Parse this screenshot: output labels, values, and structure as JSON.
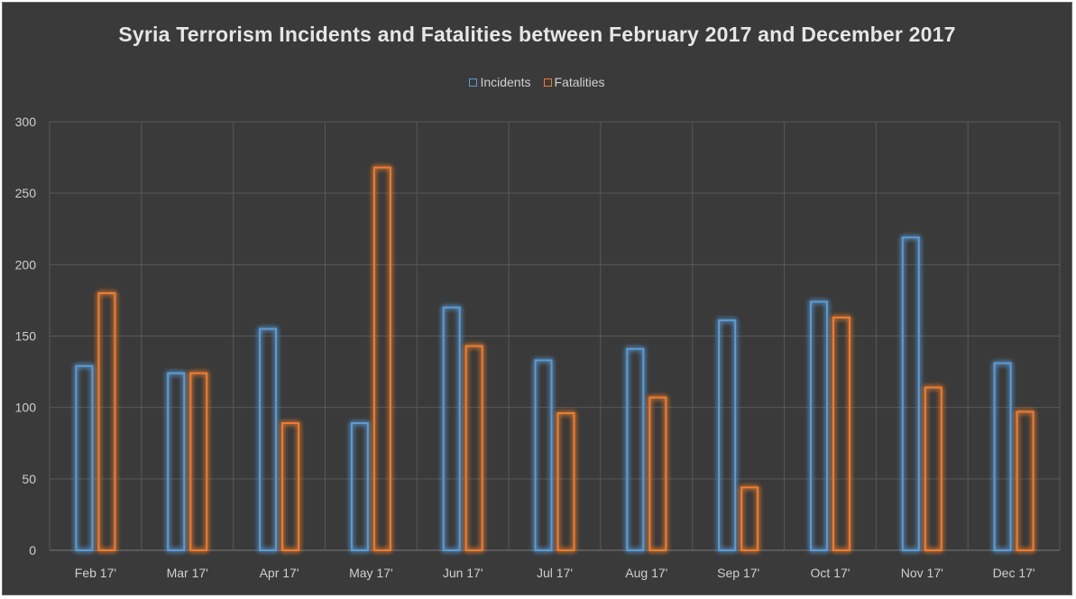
{
  "chart_data": {
    "type": "bar",
    "title": "Syria Terrorism Incidents and Fatalities between February 2017 and December 2017",
    "categories": [
      "Feb 17'",
      "Mar 17'",
      "Apr 17'",
      "May 17'",
      "Jun 17'",
      "Jul 17'",
      "Aug 17'",
      "Sep 17'",
      "Oct 17'",
      "Nov 17'",
      "Dec 17'"
    ],
    "series": [
      {
        "name": "Incidents",
        "color": "#5b9bd5",
        "values": [
          129,
          124,
          155,
          89,
          170,
          133,
          141,
          161,
          174,
          219,
          131
        ]
      },
      {
        "name": "Fatalities",
        "color": "#ed7d31",
        "values": [
          180,
          124,
          89,
          268,
          143,
          96,
          107,
          44,
          163,
          114,
          97
        ]
      }
    ],
    "ylim": [
      0,
      300
    ],
    "yticks": [
      0,
      50,
      100,
      150,
      200,
      250,
      300
    ],
    "grid": true,
    "legend_position": "top",
    "background": "#3a3a3a"
  }
}
